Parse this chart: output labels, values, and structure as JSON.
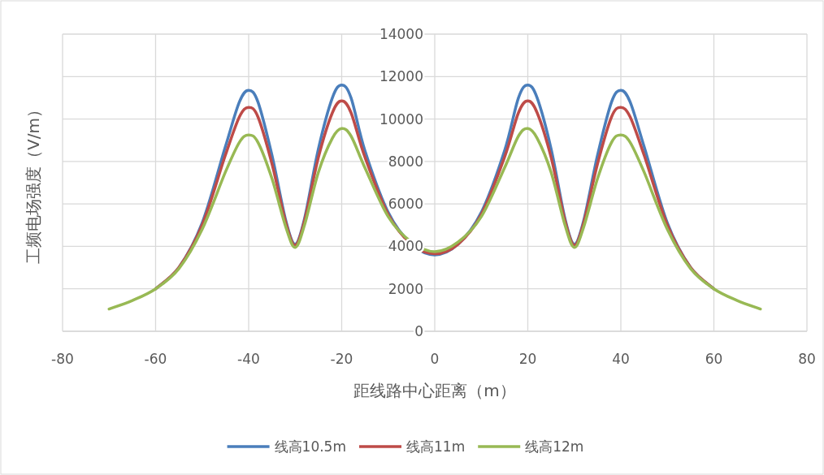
{
  "chart_data": {
    "type": "line",
    "xlabel": "距线路中心距离（m）",
    "ylabel": "工频电场强度（V/m）",
    "x": [
      -70,
      -65,
      -60,
      -55,
      -50,
      -45,
      -42,
      -40,
      -38,
      -35,
      -32,
      -30,
      -28,
      -25,
      -22,
      -20,
      -18,
      -15,
      -10,
      -5,
      0,
      5,
      10,
      15,
      18,
      20,
      22,
      25,
      28,
      30,
      32,
      35,
      38,
      40,
      42,
      45,
      50,
      55,
      60,
      65,
      70
    ],
    "series": [
      {
        "name": "线高10.5m",
        "color": "#4a7ebb",
        "values": [
          null,
          null,
          2000,
          3000,
          5100,
          8700,
          10800,
          11350,
          10800,
          8300,
          5200,
          4100,
          5300,
          8600,
          11000,
          11600,
          11000,
          8500,
          5600,
          4100,
          3600,
          4100,
          5600,
          8500,
          11000,
          11600,
          11000,
          8600,
          5300,
          4100,
          5200,
          8300,
          10800,
          11350,
          10800,
          8700,
          5100,
          3000,
          2000,
          null,
          null
        ]
      },
      {
        "name": "线高11m",
        "color": "#be4b48",
        "values": [
          null,
          null,
          2000,
          3000,
          5000,
          8300,
          10100,
          10550,
          10100,
          7900,
          5100,
          4050,
          5200,
          8200,
          10300,
          10850,
          10300,
          8200,
          5500,
          4100,
          3650,
          4100,
          5500,
          8200,
          10300,
          10850,
          10300,
          8200,
          5200,
          4050,
          5100,
          7900,
          10100,
          10550,
          10100,
          8300,
          5000,
          3000,
          2000,
          null,
          null
        ]
      },
      {
        "name": "线高12m",
        "color": "#98b954",
        "values": [
          1050,
          1450,
          2000,
          2950,
          4800,
          7500,
          8900,
          9250,
          8900,
          7200,
          4900,
          3950,
          5000,
          7500,
          9100,
          9550,
          9200,
          7700,
          5400,
          4200,
          3750,
          4200,
          5400,
          7700,
          9200,
          9550,
          9100,
          7500,
          5000,
          3950,
          4900,
          7200,
          8900,
          9250,
          8900,
          7500,
          4800,
          2950,
          2000,
          1450,
          1050
        ]
      }
    ],
    "xlim": [
      -80,
      80
    ],
    "ylim": [
      0,
      14000
    ],
    "xticks": [
      -80,
      -60,
      -40,
      -20,
      0,
      20,
      40,
      60,
      80
    ],
    "yticks": [
      0,
      2000,
      4000,
      6000,
      8000,
      10000,
      12000,
      14000
    ],
    "grid": true,
    "legend": "bottom"
  }
}
